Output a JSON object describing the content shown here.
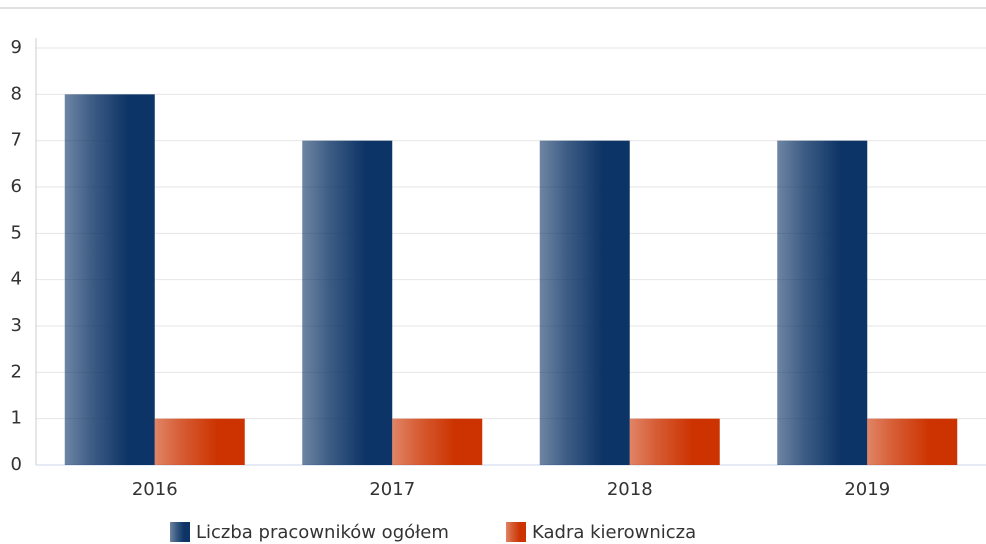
{
  "chart_data": {
    "type": "bar",
    "categories": [
      "2016",
      "2017",
      "2018",
      "2019"
    ],
    "series": [
      {
        "name": "Liczba pracowników ogółem",
        "color": "#0d3466",
        "values": [
          8,
          7,
          7,
          7
        ]
      },
      {
        "name": "Kadra kierownicza",
        "color": "#cc3300",
        "values": [
          1,
          1,
          1,
          1
        ]
      }
    ],
    "ylim": [
      0,
      9
    ],
    "yticks": [
      0,
      1,
      2,
      3,
      4,
      5,
      6,
      7,
      8,
      9
    ],
    "grid": true
  }
}
